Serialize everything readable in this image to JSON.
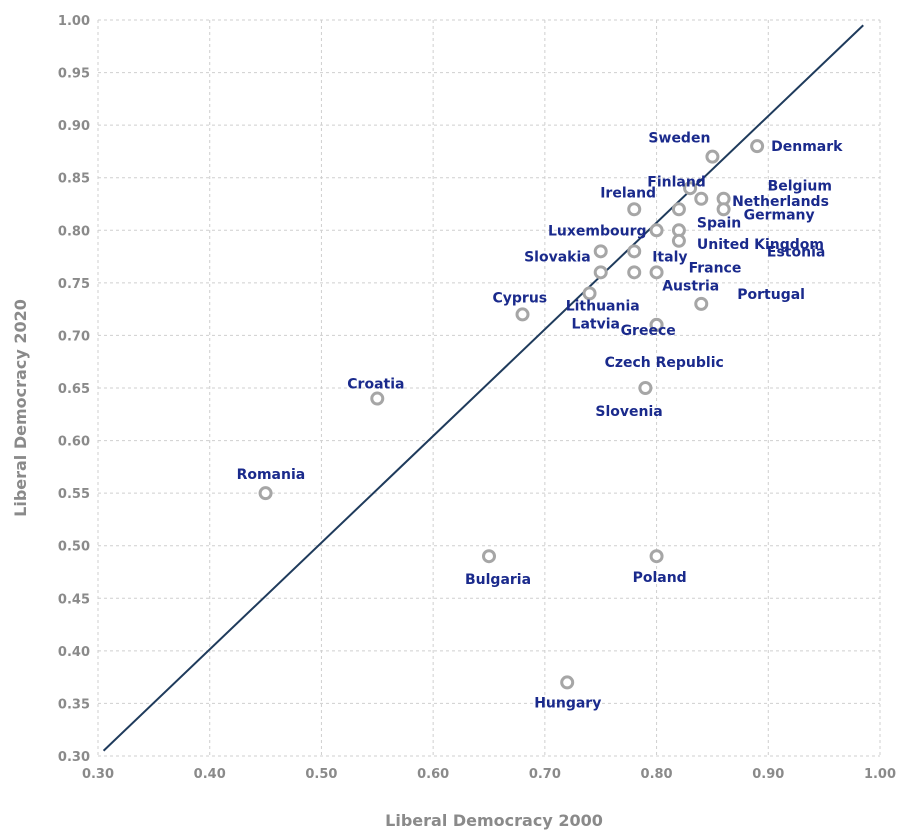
{
  "chart_data": {
    "type": "scatter",
    "title": "",
    "xlabel": "Liberal Democracy 2000",
    "ylabel": "Liberal Democracy 2020",
    "xlim": [
      0.3,
      1.0
    ],
    "ylim": [
      0.3,
      1.0
    ],
    "x_ticks": [
      "0.30",
      "0.40",
      "0.50",
      "0.60",
      "0.70",
      "0.80",
      "0.90",
      "1.00"
    ],
    "y_ticks": [
      "0.30",
      "0.35",
      "0.40",
      "0.45",
      "0.50",
      "0.55",
      "0.60",
      "0.65",
      "0.70",
      "0.75",
      "0.80",
      "0.85",
      "0.90",
      "0.95",
      "1.00"
    ],
    "grid": true,
    "reference_line": {
      "from": [
        0.305,
        0.305
      ],
      "to": [
        0.985,
        0.995
      ]
    },
    "points": [
      {
        "label": "Denmark",
        "x": 0.89,
        "y": 0.88
      },
      {
        "label": "Sweden",
        "x": 0.85,
        "y": 0.87
      },
      {
        "label": "Netherlands",
        "x": 0.83,
        "y": 0.84
      },
      {
        "label": "Finland",
        "x": 0.84,
        "y": 0.83
      },
      {
        "label": "Belgium",
        "x": 0.86,
        "y": 0.83
      },
      {
        "label": "Germany",
        "x": 0.86,
        "y": 0.82
      },
      {
        "label": "Ireland",
        "x": 0.78,
        "y": 0.82
      },
      {
        "label": "Spain",
        "x": 0.82,
        "y": 0.82
      },
      {
        "label": "Estonia",
        "x": 0.82,
        "y": 0.8
      },
      {
        "label": "Luxembourg",
        "x": 0.8,
        "y": 0.8
      },
      {
        "label": "United Kingdom",
        "x": 0.82,
        "y": 0.79
      },
      {
        "label": "Slovakia",
        "x": 0.75,
        "y": 0.78
      },
      {
        "label": "Italy",
        "x": 0.78,
        "y": 0.78
      },
      {
        "label": "France",
        "x": 0.8,
        "y": 0.76
      },
      {
        "label": "Austria",
        "x": 0.78,
        "y": 0.76
      },
      {
        "label": "Lithuania",
        "x": 0.75,
        "y": 0.76
      },
      {
        "label": "Latvia",
        "x": 0.74,
        "y": 0.74
      },
      {
        "label": "Portugal",
        "x": 0.84,
        "y": 0.73
      },
      {
        "label": "Cyprus",
        "x": 0.68,
        "y": 0.72
      },
      {
        "label": "Greece",
        "x": 0.8,
        "y": 0.71
      },
      {
        "label": "Czech Republic",
        "x": 0.8,
        "y": 0.71
      },
      {
        "label": "Slovenia",
        "x": 0.79,
        "y": 0.65
      },
      {
        "label": "Croatia",
        "x": 0.55,
        "y": 0.64
      },
      {
        "label": "Romania",
        "x": 0.45,
        "y": 0.55
      },
      {
        "label": "Bulgaria",
        "x": 0.65,
        "y": 0.49
      },
      {
        "label": "Poland",
        "x": 0.8,
        "y": 0.49
      },
      {
        "label": "Hungary",
        "x": 0.72,
        "y": 0.37
      }
    ]
  }
}
